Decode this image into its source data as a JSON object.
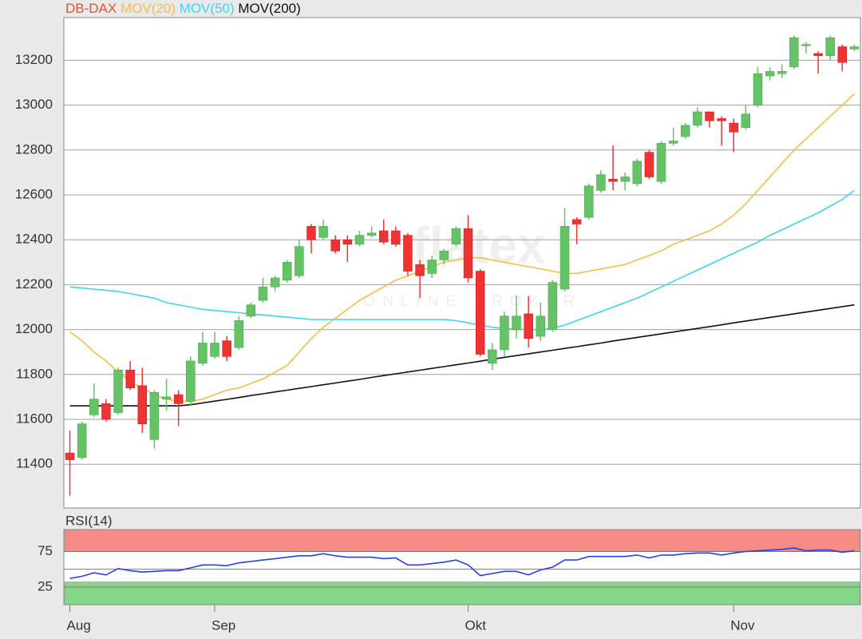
{
  "chart_data": [
    {
      "type": "candlestick",
      "name": "DB-DAX",
      "color": "#e8502e",
      "color_up": "#66c266",
      "color_down": "#ee3333",
      "watermark": {
        "brand": "flatex",
        "tagline": "ONLINE BROKER"
      },
      "categories": [
        "Aug",
        null,
        null,
        null,
        null,
        null,
        null,
        null,
        null,
        null,
        null,
        null,
        "Sep",
        null,
        null,
        null,
        null,
        null,
        null,
        null,
        null,
        null,
        null,
        null,
        null,
        null,
        null,
        null,
        null,
        null,
        null,
        null,
        null,
        "Okt",
        null,
        null,
        null,
        null,
        null,
        null,
        null,
        null,
        null,
        null,
        null,
        null,
        null,
        null,
        null,
        null,
        null,
        null,
        null,
        null,
        null,
        "Nov",
        null,
        null,
        null,
        null,
        null,
        null,
        null,
        null,
        null,
        null
      ],
      "open": [
        11450,
        11430,
        11620,
        11670,
        11630,
        11820,
        11750,
        11510,
        11690,
        11710,
        11680,
        11850,
        11880,
        11950,
        11920,
        12060,
        12130,
        12190,
        12220,
        12240,
        12460,
        12410,
        12400,
        12400,
        12380,
        12420,
        12440,
        12440,
        12420,
        12290,
        12250,
        12310,
        12380,
        12450,
        12260,
        11850,
        11910,
        12000,
        12070,
        11970,
        12000,
        12180,
        12490,
        12500,
        12620,
        12670,
        12660,
        12650,
        12790,
        12660,
        12830,
        12860,
        12910,
        12970,
        12940,
        12920,
        12900,
        13000,
        13130,
        13140,
        13170,
        13270,
        13230,
        13220,
        13260,
        13250
      ],
      "high": [
        11550,
        11590,
        11760,
        11690,
        11830,
        11860,
        11830,
        11730,
        11780,
        11730,
        11880,
        11990,
        11990,
        11970,
        12060,
        12120,
        12230,
        12240,
        12310,
        12400,
        12470,
        12490,
        12420,
        12420,
        12440,
        12460,
        12490,
        12460,
        12430,
        12310,
        12330,
        12360,
        12460,
        12510,
        12270,
        11940,
        12080,
        12150,
        12150,
        12120,
        12220,
        12540,
        12500,
        12650,
        12710,
        12820,
        12700,
        12760,
        12800,
        12840,
        12900,
        12920,
        12990,
        12970,
        12950,
        12940,
        13000,
        13170,
        13170,
        13180,
        13310,
        13280,
        13240,
        13310,
        13270,
        13270
      ],
      "low": [
        11260,
        11420,
        11610,
        11590,
        11620,
        11730,
        11540,
        11470,
        11640,
        11570,
        11660,
        11840,
        11870,
        11860,
        11910,
        12050,
        12120,
        12170,
        12210,
        12230,
        12340,
        12400,
        12340,
        12300,
        12370,
        12410,
        12380,
        12370,
        12240,
        12140,
        12230,
        12290,
        12370,
        12210,
        11880,
        11820,
        11880,
        11960,
        11920,
        11950,
        11990,
        12170,
        12380,
        12490,
        12610,
        12620,
        12620,
        12640,
        12670,
        12650,
        12820,
        12850,
        12900,
        12900,
        12820,
        12790,
        12890,
        12990,
        13110,
        13120,
        13160,
        13230,
        13140,
        13200,
        13150,
        13240
      ],
      "close": [
        11420,
        11580,
        11690,
        11600,
        11820,
        11740,
        11580,
        11720,
        11700,
        11670,
        11860,
        11940,
        11940,
        11880,
        12040,
        12110,
        12190,
        12230,
        12300,
        12370,
        12400,
        12460,
        12350,
        12380,
        12420,
        12430,
        12390,
        12380,
        12260,
        12240,
        12310,
        12350,
        12450,
        12230,
        11890,
        11910,
        12060,
        12060,
        11960,
        12060,
        12210,
        12460,
        12470,
        12640,
        12690,
        12660,
        12680,
        12750,
        12680,
        12830,
        12840,
        12910,
        12970,
        12930,
        12930,
        12880,
        12960,
        13140,
        13150,
        13150,
        13300,
        13270,
        13220,
        13300,
        13190,
        13260
      ],
      "series": [
        {
          "name": "MOV(20)",
          "color": "#f5bc4a",
          "values": [
            11990,
            11950,
            11900,
            11860,
            11810,
            11770,
            11740,
            11710,
            11690,
            11680,
            11680,
            11690,
            11710,
            11730,
            11740,
            11760,
            11780,
            11810,
            11840,
            11900,
            11960,
            12010,
            12050,
            12090,
            12130,
            12160,
            12190,
            12220,
            12240,
            12260,
            12280,
            12300,
            12310,
            12320,
            12320,
            12310,
            12300,
            12290,
            12280,
            12270,
            12260,
            12250,
            12250,
            12260,
            12270,
            12280,
            12290,
            12310,
            12330,
            12350,
            12380,
            12400,
            12420,
            12440,
            12470,
            12510,
            12560,
            12620,
            12680,
            12740,
            12800,
            12850,
            12900,
            12950,
            13000,
            13050
          ]
        },
        {
          "name": "MOV(50)",
          "color": "#3dd4ee",
          "values": [
            12190,
            12185,
            12180,
            12175,
            12170,
            12160,
            12150,
            12140,
            12120,
            12110,
            12100,
            12090,
            12085,
            12080,
            12075,
            12070,
            12065,
            12060,
            12055,
            12050,
            12045,
            12045,
            12045,
            12045,
            12045,
            12045,
            12045,
            12045,
            12045,
            12045,
            12045,
            12045,
            12040,
            12030,
            12020,
            12010,
            12005,
            12000,
            12000,
            12000,
            12005,
            12020,
            12040,
            12060,
            12080,
            12100,
            12120,
            12140,
            12165,
            12190,
            12215,
            12240,
            12265,
            12290,
            12315,
            12340,
            12365,
            12390,
            12420,
            12445,
            12470,
            12495,
            12520,
            12550,
            12580,
            12620
          ]
        },
        {
          "name": "MOV(200)",
          "color": "#111111",
          "values": [
            11660,
            11660,
            11660,
            11660,
            11660,
            11660,
            11660,
            11660,
            11660,
            11660,
            11665,
            11673,
            11681,
            11689,
            11697,
            11706,
            11714,
            11722,
            11730,
            11738,
            11746,
            11754,
            11762,
            11770,
            11778,
            11787,
            11795,
            11803,
            11811,
            11819,
            11827,
            11835,
            11843,
            11851,
            11859,
            11868,
            11876,
            11884,
            11892,
            11900,
            11908,
            11916,
            11924,
            11932,
            11940,
            11949,
            11957,
            11965,
            11973,
            11981,
            11989,
            11997,
            12005,
            12013,
            12021,
            12030,
            12038,
            12046,
            12054,
            12062,
            12070,
            12078,
            12086,
            12094,
            12102,
            12110
          ]
        }
      ],
      "ylim": [
        11205,
        13390
      ],
      "yticks": [
        11400,
        11600,
        11800,
        12000,
        12200,
        12400,
        12600,
        12800,
        13000,
        13200
      ],
      "grid": true
    },
    {
      "type": "line",
      "title": "RSI(14)",
      "color": "#2b3fe0",
      "values": [
        37,
        40,
        45,
        42,
        51,
        48,
        46,
        47,
        48,
        48,
        52,
        56,
        56,
        55,
        59,
        61,
        63,
        65,
        67,
        69,
        69,
        72,
        69,
        67,
        67,
        67,
        65,
        66,
        56,
        56,
        58,
        60,
        63,
        56,
        41,
        44,
        47,
        47,
        42,
        49,
        53,
        63,
        63,
        68,
        68,
        68,
        68,
        70,
        66,
        70,
        70,
        72,
        73,
        73,
        70,
        73,
        75,
        76,
        77,
        78,
        80,
        76,
        77,
        77,
        74,
        76
      ],
      "ylim": [
        0,
        106
      ],
      "yticks": [
        25,
        75
      ],
      "gridlines": [
        25,
        50,
        75
      ],
      "zones": [
        {
          "range": [
            75,
            106
          ],
          "color": "#f58a86"
        },
        {
          "range": [
            0,
            32
          ],
          "color": "#85d685"
        }
      ]
    }
  ]
}
